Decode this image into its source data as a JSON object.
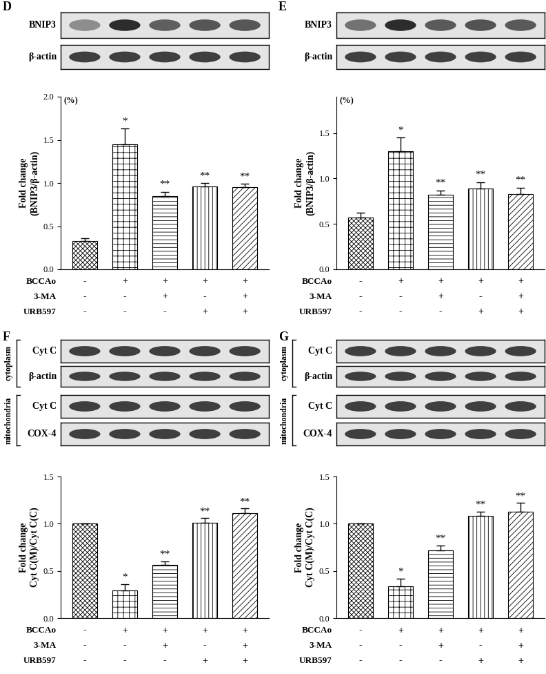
{
  "chart_data": [
    {
      "type": "bar",
      "title": "D",
      "y_label": "Fold change\n(BNIP3/β-actin)",
      "y_unit": "(%)",
      "blots": [
        "BNIP3",
        "β-actin"
      ],
      "categories": [
        null,
        null,
        null,
        null,
        null
      ],
      "values": [
        0.33,
        1.45,
        0.85,
        0.96,
        0.95
      ],
      "errors": [
        0.03,
        0.18,
        0.05,
        0.04,
        0.04
      ],
      "significance": [
        null,
        "*",
        "**",
        "**",
        "**"
      ],
      "treatments": [
        {
          "name": "BCCAo",
          "signs": [
            "-",
            "+",
            "+",
            "+",
            "+"
          ]
        },
        {
          "name": "3-MA",
          "signs": [
            "-",
            "-",
            "+",
            "-",
            "+"
          ]
        },
        {
          "name": "URB597",
          "signs": [
            "-",
            "-",
            "-",
            "+",
            "+"
          ]
        }
      ],
      "color": "#ffffff",
      "ylim": [
        0.0,
        2.0
      ],
      "yticks": [
        0.0,
        0.5,
        1.0,
        1.5,
        2.0
      ],
      "grid": false,
      "tick_labels": "y"
    },
    {
      "type": "bar",
      "title": "E",
      "y_label": "Fold change\n(BNIP3/β-actin)",
      "y_unit": "(%)",
      "blots": [
        "BNIP3",
        "β-actin"
      ],
      "categories": [
        null,
        null,
        null,
        null,
        null
      ],
      "values": [
        0.57,
        1.3,
        0.82,
        0.89,
        0.83
      ],
      "errors": [
        0.05,
        0.15,
        0.05,
        0.07,
        0.07
      ],
      "significance": [
        null,
        "*",
        "**",
        "**",
        "**"
      ],
      "treatments": [
        {
          "name": "BCCAo",
          "signs": [
            "-",
            "+",
            "+",
            "+",
            "+"
          ]
        },
        {
          "name": "3-MA",
          "signs": [
            "-",
            "-",
            "+",
            "-",
            "+"
          ]
        },
        {
          "name": "URB597",
          "signs": [
            "-",
            "-",
            "-",
            "+",
            "+"
          ]
        }
      ],
      "color": "#ffffff",
      "ylim": [
        0.0,
        1.9
      ],
      "yticks": [
        0.0,
        0.5,
        1.0,
        1.5
      ],
      "grid": false,
      "tick_labels": "y"
    },
    {
      "type": "bar",
      "title": "F",
      "y_label": "Fold change\nCyt C(M)/Cyt C(C)",
      "blot_groups": [
        {
          "name": "cytoplasm",
          "blots": [
            "Cyt C",
            "β-actin"
          ]
        },
        {
          "name": "mitochondria",
          "blots": [
            "Cyt C",
            "COX-4"
          ]
        }
      ],
      "categories": [
        null,
        null,
        null,
        null,
        null
      ],
      "values": [
        1.0,
        0.29,
        0.56,
        1.01,
        1.11
      ],
      "errors": [
        0.0,
        0.07,
        0.04,
        0.05,
        0.05
      ],
      "significance": [
        null,
        "*",
        "**",
        "**",
        "**"
      ],
      "treatments": [
        {
          "name": "BCCAo",
          "signs": [
            "-",
            "+",
            "+",
            "+",
            "+"
          ]
        },
        {
          "name": "3-MA",
          "signs": [
            "-",
            "-",
            "+",
            "-",
            "+"
          ]
        },
        {
          "name": "URB597",
          "signs": [
            "-",
            "-",
            "-",
            "+",
            "+"
          ]
        }
      ],
      "color": "#ffffff",
      "ylim": [
        0.0,
        1.5
      ],
      "yticks": [
        0.0,
        0.5,
        1.0,
        1.5
      ],
      "grid": false,
      "tick_labels": "y"
    },
    {
      "type": "bar",
      "title": "G",
      "y_label": "Fold change\nCyt C(M)/Cyt C(C)",
      "blot_groups": [
        {
          "name": "cytoplasm",
          "blots": [
            "Cyt C",
            "β-actin"
          ]
        },
        {
          "name": "mitochondria",
          "blots": [
            "Cyt C",
            "COX-4"
          ]
        }
      ],
      "categories": [
        null,
        null,
        null,
        null,
        null
      ],
      "values": [
        1.0,
        0.34,
        0.72,
        1.08,
        1.13
      ],
      "errors": [
        0.0,
        0.08,
        0.05,
        0.05,
        0.09
      ],
      "significance": [
        null,
        "*",
        "**",
        "**",
        "**"
      ],
      "treatments": [
        {
          "name": "BCCAo",
          "signs": [
            "-",
            "+",
            "+",
            "+",
            "+"
          ]
        },
        {
          "name": "3-MA",
          "signs": [
            "-",
            "-",
            "+",
            "-",
            "+"
          ]
        },
        {
          "name": "URB597",
          "signs": [
            "-",
            "-",
            "-",
            "+",
            "+"
          ]
        }
      ],
      "color": "#ffffff",
      "ylim": [
        0.0,
        1.5
      ],
      "yticks": [
        0.0,
        0.5,
        1.0,
        1.5
      ],
      "grid": false,
      "tick_labels": "y"
    }
  ]
}
